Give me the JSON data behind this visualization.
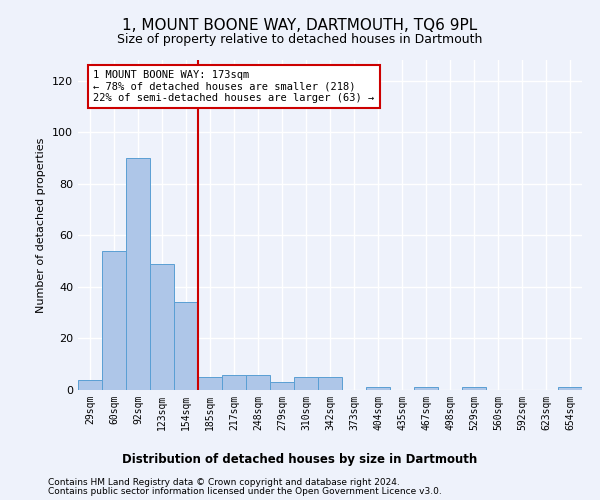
{
  "title": "1, MOUNT BOONE WAY, DARTMOUTH, TQ6 9PL",
  "subtitle": "Size of property relative to detached houses in Dartmouth",
  "xlabel": "Distribution of detached houses by size in Dartmouth",
  "ylabel": "Number of detached properties",
  "bar_labels": [
    "29sqm",
    "60sqm",
    "92sqm",
    "123sqm",
    "154sqm",
    "185sqm",
    "217sqm",
    "248sqm",
    "279sqm",
    "310sqm",
    "342sqm",
    "373sqm",
    "404sqm",
    "435sqm",
    "467sqm",
    "498sqm",
    "529sqm",
    "560sqm",
    "592sqm",
    "623sqm",
    "654sqm"
  ],
  "bar_values": [
    4,
    54,
    90,
    49,
    34,
    5,
    6,
    6,
    3,
    5,
    5,
    0,
    1,
    0,
    1,
    0,
    1,
    0,
    0,
    0,
    1
  ],
  "bar_color": "#aec6e8",
  "bar_edge_color": "#5a9fd4",
  "ylim": [
    0,
    128
  ],
  "yticks": [
    0,
    20,
    40,
    60,
    80,
    100,
    120
  ],
  "property_line_x": 4.5,
  "annotation_text": "1 MOUNT BOONE WAY: 173sqm\n← 78% of detached houses are smaller (218)\n22% of semi-detached houses are larger (63) →",
  "annotation_box_color": "#ffffff",
  "annotation_box_edge_color": "#cc0000",
  "line_color": "#cc0000",
  "footer_line1": "Contains HM Land Registry data © Crown copyright and database right 2024.",
  "footer_line2": "Contains public sector information licensed under the Open Government Licence v3.0.",
  "bg_color": "#eef2fb",
  "grid_color": "#ffffff"
}
